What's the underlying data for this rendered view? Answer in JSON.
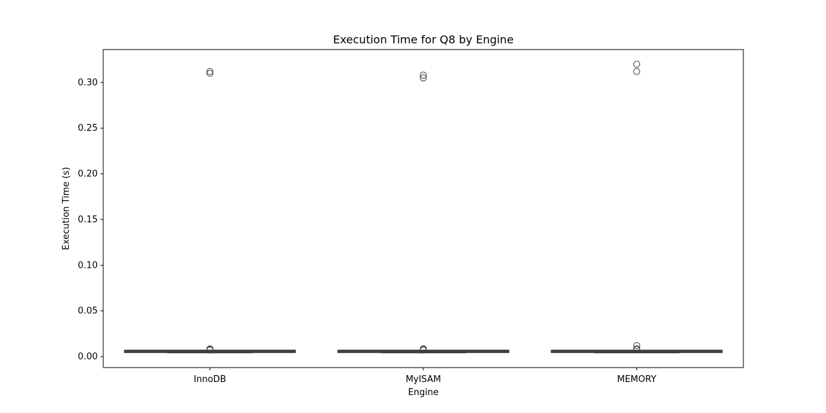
{
  "chart_data": {
    "type": "box",
    "title": "Execution Time for Q8 by Engine",
    "xlabel": "Engine",
    "ylabel": "Execution Time (s)",
    "categories": [
      "InnoDB",
      "MyISAM",
      "MEMORY"
    ],
    "ylim": [
      -0.012,
      0.336
    ],
    "yticks": [
      0.0,
      0.05,
      0.1,
      0.15,
      0.2,
      0.25,
      0.3
    ],
    "ytick_labels": [
      "0.00",
      "0.05",
      "0.10",
      "0.15",
      "0.20",
      "0.25",
      "0.30"
    ],
    "boxes": [
      {
        "category": "InnoDB",
        "whisker_low": 0.004,
        "q1": 0.0045,
        "median": 0.0055,
        "q3": 0.007,
        "whisker_high": 0.007,
        "outliers": [
          0.312,
          0.31,
          0.0085,
          0.0078,
          0.0072
        ]
      },
      {
        "category": "MyISAM",
        "whisker_low": 0.004,
        "q1": 0.0045,
        "median": 0.0055,
        "q3": 0.007,
        "whisker_high": 0.007,
        "outliers": [
          0.308,
          0.305,
          0.0085,
          0.0078,
          0.0072
        ]
      },
      {
        "category": "MEMORY",
        "whisker_low": 0.004,
        "q1": 0.0045,
        "median": 0.0055,
        "q3": 0.007,
        "whisker_high": 0.007,
        "outliers": [
          0.32,
          0.312,
          0.012,
          0.0085,
          0.0075
        ]
      }
    ],
    "grid": false,
    "box_color": "#3b4a66",
    "line_color": "#3f3f3f"
  }
}
